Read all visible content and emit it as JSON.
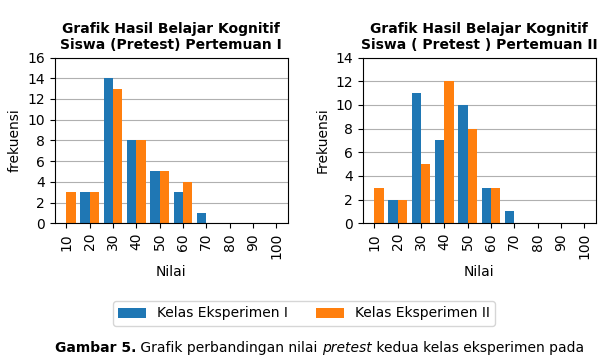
{
  "chart_data": [
    {
      "type": "bar",
      "title": "Grafik Hasil Belajar Kognitif\nSiswa (Pretest) Pertemuan I",
      "xlabel": "Nilai",
      "ylabel": "frekuensi",
      "categories": [
        10,
        20,
        30,
        40,
        50,
        60,
        70,
        80,
        90,
        100
      ],
      "series": [
        {
          "name": "Kelas Eksperimen I",
          "values": [
            0,
            3,
            14,
            8,
            5,
            3,
            1,
            0,
            0,
            0
          ]
        },
        {
          "name": "Kelas Eksperimen II",
          "values": [
            3,
            3,
            13,
            8,
            5,
            4,
            0,
            0,
            0,
            0
          ]
        }
      ],
      "ylim": [
        0,
        16
      ],
      "yticks": [
        0,
        2,
        4,
        6,
        8,
        10,
        12,
        14,
        16
      ],
      "grid": true,
      "legend": "lower center"
    },
    {
      "type": "bar",
      "title": "Grafik Hasil Belajar Kognitif\nSiswa ( Pretest ) Pertemuan II",
      "xlabel": "Nilai",
      "ylabel": "Frekuensi",
      "categories": [
        10,
        20,
        30,
        40,
        50,
        60,
        70,
        80,
        90,
        100
      ],
      "series": [
        {
          "name": "Kelas Eksperimen I",
          "values": [
            0,
            2,
            11,
            7,
            10,
            3,
            1,
            0,
            0,
            0
          ]
        },
        {
          "name": "Kelas Eksperimen II",
          "values": [
            3,
            2,
            5,
            12,
            8,
            3,
            0,
            0,
            0,
            0
          ]
        }
      ],
      "ylim": [
        0,
        14
      ],
      "yticks": [
        0,
        2,
        4,
        6,
        8,
        10,
        12,
        14
      ],
      "grid": true
    }
  ],
  "caption": [
    "Gambar 5.",
    " Grafik perbandingan nilai ",
    "pretest",
    " kedua kelas eksperimen pada"
  ]
}
